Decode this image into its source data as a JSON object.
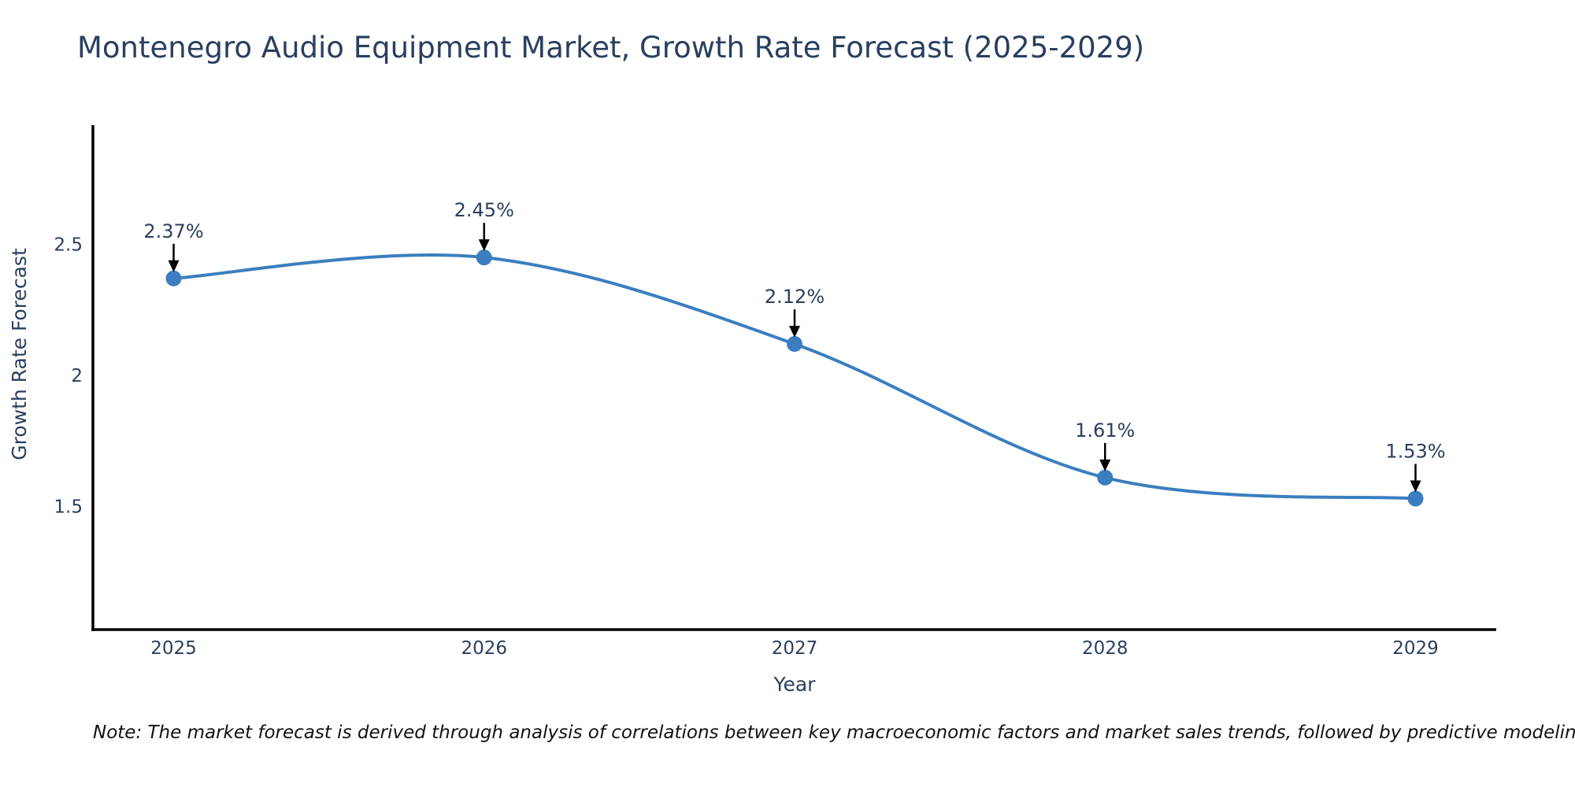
{
  "title": "Montenegro Audio Equipment Market, Growth Rate Forecast (2025-2029)",
  "note": "Note: The market forecast is derived through analysis of correlations between key macroeconomic factors and market sales trends, followed by predictive modeling to project future sales",
  "chart_data": {
    "type": "line",
    "line_shape": "spline",
    "title": "Montenegro Audio Equipment Market, Growth Rate Forecast (2025-2029)",
    "xlabel": "Year",
    "ylabel": "Growth Rate Forecast",
    "x": [
      2025,
      2026,
      2027,
      2028,
      2029
    ],
    "series": [
      {
        "name": "Growth Rate Forecast",
        "values": [
          2.37,
          2.45,
          2.12,
          1.61,
          1.53
        ]
      }
    ],
    "point_labels": [
      "2.37%",
      "2.45%",
      "2.12%",
      "1.61%",
      "1.53%"
    ],
    "x_tick_labels": [
      "2025",
      "2026",
      "2027",
      "2028",
      "2029"
    ],
    "y_ticks": [
      1.5,
      2,
      2.5
    ],
    "y_tick_labels": [
      "1.5",
      "2",
      "2.5"
    ],
    "xlim": [
      2024.74,
      2029.26
    ],
    "ylim": [
      1.03,
      2.955
    ],
    "grid": false,
    "legend_position": "none",
    "annotations_have_arrows": true,
    "colors": {
      "line": "#3b7ec0",
      "marker": "#3b7ec0",
      "axis_line": "#000000",
      "tick_text": "#2a3f5f",
      "axis_title_text": "#2a3f5f",
      "annotation_text": "#2a3f5f",
      "annotation_arrow": "#000000",
      "title_text": "#2a3f5f",
      "note_text": "#111111",
      "background": "#ffffff"
    }
  }
}
